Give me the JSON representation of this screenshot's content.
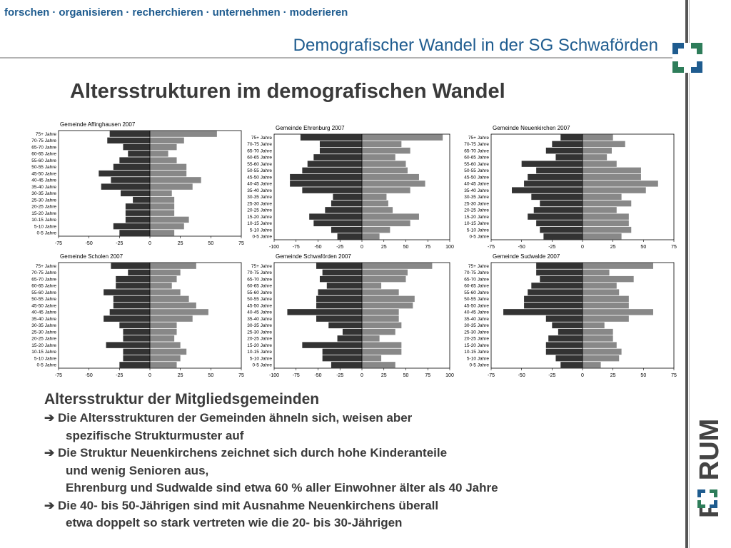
{
  "header": {
    "tagline": [
      "forschen",
      "organisieren",
      "recherchieren",
      "unternehmen",
      "moderieren"
    ],
    "separator": "·",
    "subtitle": "Demografischer Wandel in der SG Schwaförden",
    "heading": "Altersstrukturen im demografischen Wandel"
  },
  "brand": {
    "logo_text": "FORUM",
    "accent": "#1f5c8f",
    "logo_green": "#2e7d5a"
  },
  "body": {
    "title": "Altersstruktur der Mitgliedsgemeinden",
    "arrow": "➔",
    "points": [
      {
        "lines": [
          "Die Altersstrukturen der Gemeinden ähneln sich, weisen aber",
          "spezifische Strukturmuster auf"
        ]
      },
      {
        "lines": [
          "Die Struktur Neuenkirchens zeichnet sich durch hohe Kinderanteile",
          "und wenig Senioren aus,",
          "Ehrenburg und Sudwalde sind etwa 60 % aller Einwohner älter als 40 Jahre"
        ]
      },
      {
        "lines": [
          "Die 40- bis 50-Jährigen sind mit Ausnahme Neuenkirchens überall",
          "etwa doppelt so stark vertreten wie die 20- bis 30-Jährigen"
        ]
      }
    ]
  },
  "chart_data": [
    {
      "type": "bar",
      "orientation": "horizontal-population-pyramid",
      "title": "Gemeinde Affinghausen 2007",
      "categories": [
        "75+ Jahre",
        "70-75 Jahre",
        "65-70 Jahre",
        "60-65 Jahre",
        "55-60 Jahre",
        "50-55 Jahre",
        "45-50 Jahre",
        "40-45 Jahre",
        "35-40 Jahre",
        "30-35 Jahre",
        "25-30 Jahre",
        "20-25 Jahre",
        "15-20 Jahre",
        "10-15 Jahre",
        "5-10 Jahre",
        "0-5 Jahre"
      ],
      "xlim": [
        -75,
        75
      ],
      "xticks": [
        "-75",
        "-50",
        "-25",
        "0",
        "25",
        "50",
        "75"
      ],
      "series": [
        {
          "values": [
            -33,
            -35,
            -22,
            -18,
            -25,
            -30,
            -42,
            -32,
            -40,
            -24,
            -14,
            -20,
            -20,
            -20,
            -30,
            -25
          ],
          "color": "#333333"
        },
        {
          "values": [
            55,
            28,
            22,
            15,
            22,
            30,
            30,
            42,
            35,
            18,
            20,
            20,
            20,
            32,
            28,
            20
          ],
          "color": "#888888"
        }
      ]
    },
    {
      "type": "bar",
      "orientation": "horizontal-population-pyramid",
      "title": "Gemeinde Ehrenburg 2007",
      "categories": [
        "75+ Jahre",
        "70-75 Jahre",
        "65-70 Jahre",
        "60-65 Jahre",
        "55-60 Jahre",
        "50-55 Jahre",
        "45-50 Jahre",
        "40-45 Jahre",
        "35-40 Jahre",
        "30-35 Jahre",
        "25-30 Jahre",
        "20-25 Jahre",
        "15-20 Jahre",
        "10-15 Jahre",
        "5-10 Jahre",
        "0-5 Jahre"
      ],
      "xlim": [
        -100,
        100
      ],
      "xticks": [
        "-100",
        "-75",
        "-50",
        "-25",
        "0",
        "25",
        "50",
        "75",
        "100"
      ],
      "series": [
        {
          "values": [
            -70,
            -48,
            -48,
            -55,
            -62,
            -68,
            -82,
            -82,
            -68,
            -33,
            -35,
            -42,
            -60,
            -55,
            -35,
            -28
          ],
          "color": "#333333"
        },
        {
          "values": [
            92,
            45,
            55,
            38,
            50,
            52,
            65,
            72,
            55,
            28,
            30,
            35,
            65,
            55,
            32,
            20
          ],
          "color": "#888888"
        }
      ]
    },
    {
      "type": "bar",
      "orientation": "horizontal-population-pyramid",
      "title": "Gemeinde Neuenkirchen 2007",
      "categories": [
        "75+ Jahre",
        "70-75 Jahre",
        "65-70 Jahre",
        "60-65 Jahre",
        "55-60 Jahre",
        "50-55 Jahre",
        "45-50 Jahre",
        "40-45 Jahre",
        "35-40 Jahre",
        "30-35 Jahre",
        "25-30 Jahre",
        "20-25 Jahre",
        "15-20 Jahre",
        "10-15 Jahre",
        "5-10 Jahre",
        "0-5 Jahre"
      ],
      "xlim": [
        -75,
        75
      ],
      "xticks": [
        "-75",
        "-50",
        "-25",
        "0",
        "25",
        "50",
        "75"
      ],
      "series": [
        {
          "values": [
            -18,
            -25,
            -30,
            -22,
            -50,
            -38,
            -45,
            -48,
            -58,
            -42,
            -35,
            -40,
            -45,
            -38,
            -35,
            -32
          ],
          "color": "#333333"
        },
        {
          "values": [
            25,
            35,
            24,
            20,
            28,
            48,
            48,
            62,
            52,
            32,
            40,
            28,
            38,
            38,
            40,
            32
          ],
          "color": "#888888"
        }
      ]
    },
    {
      "type": "bar",
      "orientation": "horizontal-population-pyramid",
      "title": "Gemeinde Scholen 2007",
      "categories": [
        "75+ Jahre",
        "70-75 Jahre",
        "65-70 Jahre",
        "60-65 Jahre",
        "55-60 Jahre",
        "50-55 Jahre",
        "45-50 Jahre",
        "40-45 Jahre",
        "35-40 Jahre",
        "30-35 Jahre",
        "25-30 Jahre",
        "20-25 Jahre",
        "15-20 Jahre",
        "10-15 Jahre",
        "5-10 Jahre",
        "0-5 Jahre"
      ],
      "xlim": [
        -75,
        75
      ],
      "xticks": [
        "-75",
        "-50",
        "-25",
        "0",
        "25",
        "50",
        "75"
      ],
      "series": [
        {
          "values": [
            -32,
            -18,
            -28,
            -28,
            -38,
            -30,
            -30,
            -33,
            -38,
            -25,
            -22,
            -22,
            -36,
            -22,
            -22,
            -25
          ],
          "color": "#333333"
        },
        {
          "values": [
            38,
            25,
            22,
            18,
            25,
            32,
            38,
            48,
            35,
            22,
            22,
            20,
            25,
            30,
            25,
            22
          ],
          "color": "#888888"
        }
      ]
    },
    {
      "type": "bar",
      "orientation": "horizontal-population-pyramid",
      "title": "Gemeinde Schwaförden 2007",
      "categories": [
        "75+ Jahre",
        "70-75 Jahre",
        "65-70 Jahre",
        "60-65 Jahre",
        "55-60 Jahre",
        "50-55 Jahre",
        "45-50 Jahre",
        "40-45 Jahre",
        "35-40 Jahre",
        "30-35 Jahre",
        "25-30 Jahre",
        "20-25 Jahre",
        "15-20 Jahre",
        "10-15 Jahre",
        "5-10 Jahre",
        "0-5 Jahre"
      ],
      "xlim": [
        -100,
        100
      ],
      "xticks": [
        "-100",
        "-75",
        "-50",
        "-25",
        "0",
        "25",
        "50",
        "75",
        "100"
      ],
      "series": [
        {
          "values": [
            -52,
            -45,
            -48,
            -40,
            -50,
            -52,
            -52,
            -85,
            -52,
            -38,
            -22,
            -28,
            -68,
            -45,
            -45,
            -35
          ],
          "color": "#333333"
        },
        {
          "values": [
            80,
            52,
            50,
            22,
            42,
            60,
            58,
            42,
            42,
            45,
            38,
            20,
            45,
            45,
            22,
            38
          ],
          "color": "#888888"
        }
      ]
    },
    {
      "type": "bar",
      "orientation": "horizontal-population-pyramid",
      "title": "Gemeinde Sudwalde 2007",
      "categories": [
        "75+ Jahre",
        "70-75 Jahre",
        "65-70 Jahre",
        "60-65 Jahre",
        "55-60 Jahre",
        "50-55 Jahre",
        "45-50 Jahre",
        "40-45 Jahre",
        "35-40 Jahre",
        "30-35 Jahre",
        "25-30 Jahre",
        "20-25 Jahre",
        "15-20 Jahre",
        "10-15 Jahre",
        "5-10 Jahre",
        "0-5 Jahre"
      ],
      "xlim": [
        -75,
        75
      ],
      "xticks": [
        "-75",
        "-50",
        "-25",
        "0",
        "25",
        "50",
        "75"
      ],
      "series": [
        {
          "values": [
            -38,
            -38,
            -35,
            -42,
            -45,
            -48,
            -48,
            -65,
            -30,
            -25,
            -20,
            -28,
            -30,
            -30,
            -22,
            -18
          ],
          "color": "#333333"
        },
        {
          "values": [
            58,
            22,
            42,
            28,
            30,
            38,
            38,
            58,
            38,
            18,
            25,
            25,
            28,
            32,
            30,
            15
          ],
          "color": "#888888"
        }
      ]
    }
  ]
}
